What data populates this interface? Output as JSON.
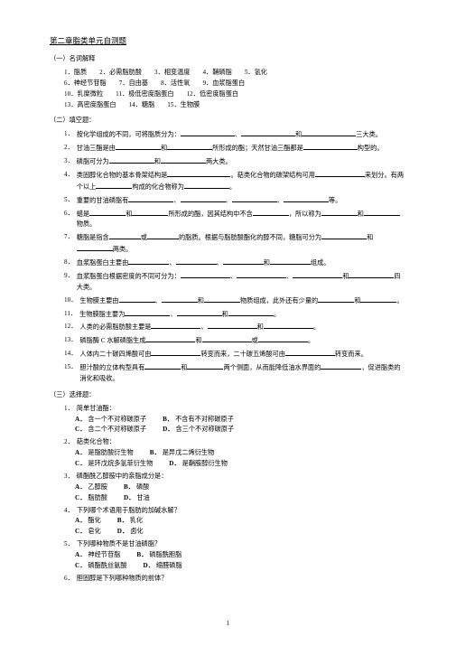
{
  "title": "第二章脂类单元自测题",
  "sections": {
    "s1": {
      "heading": "（一）名词解释",
      "terms": [
        "1．脂质",
        "2．必需脂肪酸",
        "3．相变温度",
        "4．鞘磷脂",
        "5．氢化",
        "6．神经节苷脂",
        "7．自由基",
        "8．活性氧",
        "9．血浆脂蛋白",
        "10．乳糜微粒",
        "11．极低密度脂蛋白",
        "12．低密度脂蛋白",
        "13．高密度脂蛋白",
        "14．糖脂",
        "15．生物膜"
      ]
    },
    "s2": {
      "heading": "（二）填空题：",
      "questions": [
        {
          "n": "1．",
          "segs": [
            "按化学组成的不同，可将脂质分为：",
            60,
            "、",
            60,
            "和",
            60,
            "三大类。"
          ]
        },
        {
          "n": "2．",
          "segs": [
            "甘油三酯是由",
            50,
            "和",
            50,
            "所形成的酯；天然甘油三酯都是",
            60,
            "构型的。"
          ]
        },
        {
          "n": "3．",
          "segs": [
            "磷脂可分为",
            50,
            "和",
            50,
            "两大类。"
          ]
        },
        {
          "n": "4．",
          "segs": [
            "类固醇化合物的基本骨架结构是",
            70,
            "。萜类化合物的碳架结构可用",
            55,
            "来划分。有两个以上",
            40,
            "构成的化合物称为",
            50,
            "。"
          ]
        },
        {
          "n": "5．",
          "segs": [
            "重要的甘油磷脂有",
            50,
            "、",
            50,
            "、",
            50,
            "、",
            50,
            "等。"
          ]
        },
        {
          "n": "6．",
          "segs": [
            "蜡是",
            40,
            "和",
            40,
            "所形成的酯，因其结构中不含",
            40,
            "，所以称为",
            40,
            "和",
            40,
            "物质。"
          ]
        },
        {
          "n": "7．",
          "segs": [
            "糖脂是指含",
            35,
            "或",
            35,
            "的脂质。根据与脂肪酸酯化的醇不同，糖脂可分为",
            50,
            "和",
            40,
            "两类。"
          ]
        },
        {
          "n": "8．",
          "segs": [
            "血浆脂蛋白主要由",
            45,
            "、",
            45,
            "、",
            45,
            "和",
            45,
            "组成。"
          ]
        },
        {
          "n": "9．",
          "segs": [
            "血浆脂蛋白根据密度的不同可分为：",
            55,
            "、",
            55,
            "、",
            55,
            "和",
            50,
            "四大类。"
          ]
        },
        {
          "n": "10．",
          "segs": [
            "生物膜主要由",
            40,
            "、",
            40,
            "和",
            40,
            "物质组成，此外还有少量的",
            40,
            "和",
            40,
            "。"
          ]
        },
        {
          "n": "11．",
          "segs": [
            "生物膜脂主要为",
            50,
            "、",
            50,
            "和",
            50,
            "。"
          ]
        },
        {
          "n": "12．",
          "segs": [
            "人类的必需脂肪酸主要是",
            55,
            "、",
            55,
            "和",
            55,
            "。"
          ]
        },
        {
          "n": "13．",
          "segs": [
            "磷脂酶 C 水解磷脂生成",
            55,
            "和",
            55,
            "或",
            55,
            "。"
          ]
        },
        {
          "n": "14．",
          "segs": [
            "人体内二十碳四烯酸可由",
            55,
            "转变而来，二十碳五烯酸可由",
            55,
            "转变而来。"
          ]
        },
        {
          "n": "15．",
          "segs": [
            "胆汁酸的立体构型具有",
            40,
            "和",
            40,
            "两个侧面，从而能降低油水界面的",
            45,
            "，促进脂类的消化和吸收。"
          ]
        }
      ]
    },
    "s3": {
      "heading": "（三）选择题：",
      "questions": [
        {
          "n": "1．",
          "text": "简单甘油酯：",
          "opts": [
            {
              "l": "A",
              "t": "含一个不对称碳原子"
            },
            {
              "l": "B",
              "t": "不含有不对称碳原子"
            },
            {
              "l": "C",
              "t": "含二个不对称碳原子"
            },
            {
              "l": "D",
              "t": "含三个不对称碳原子"
            }
          ]
        },
        {
          "n": "2．",
          "text": "萜类化合物：",
          "opts": [
            {
              "l": "A",
              "t": "是脂肪酸衍生物"
            },
            {
              "l": "B",
              "t": "是异戊二烯衍生物"
            },
            {
              "l": "C",
              "t": "是环戊烷多氢菲衍生物"
            },
            {
              "l": "D",
              "t": "是鞘胺醇衍生物"
            }
          ]
        },
        {
          "n": "3．",
          "text": "磷酯酰乙醇胺中的亲脂成分是：",
          "opts": [
            {
              "l": "A",
              "t": "乙醇胺"
            },
            {
              "l": "B",
              "t": "磷酸"
            },
            {
              "l": "C",
              "t": "脂肪酸"
            },
            {
              "l": "D",
              "t": "甘油"
            }
          ]
        },
        {
          "n": "4．",
          "text": "下列哪个术语用于脂肪的加碱水解？",
          "opts": [
            {
              "l": "A",
              "t": "酯化"
            },
            {
              "l": "B",
              "t": "乳化"
            },
            {
              "l": "C",
              "t": "皂化"
            },
            {
              "l": "D",
              "t": "卤化"
            }
          ]
        },
        {
          "n": "5．",
          "text": "下列哪种物质不是甘油磷脂？",
          "opts": [
            {
              "l": "A",
              "t": "神经节苷脂"
            },
            {
              "l": "B",
              "t": "磷脂酰胆脂"
            },
            {
              "l": "C",
              "t": "磷酯酰丝氨酸"
            },
            {
              "l": "D",
              "t": "缩醛磷脂"
            }
          ]
        },
        {
          "n": "6．",
          "text": "胆固醇是下列哪种物质的前体？",
          "opts": []
        }
      ]
    }
  },
  "pageNumber": "1"
}
